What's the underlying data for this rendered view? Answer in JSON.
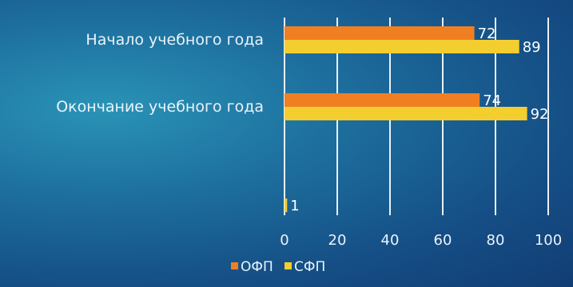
{
  "chart_data": {
    "type": "bar",
    "orientation": "horizontal",
    "categories": [
      "Начало учебного года",
      "Окончание учебного года",
      ""
    ],
    "series": [
      {
        "name": "ОФП",
        "values": [
          72,
          74,
          null
        ],
        "color": "#f07f22"
      },
      {
        "name": "СФП",
        "values": [
          89,
          92,
          1
        ],
        "color": "#f4ce2e"
      }
    ],
    "data_labels": [
      [
        "72",
        "74",
        ""
      ],
      [
        "89",
        "92",
        "1"
      ]
    ],
    "xticks": [
      "0",
      "20",
      "40",
      "60",
      "80",
      "100"
    ],
    "xlim": [
      0,
      100
    ],
    "grid": true,
    "legend": "bottom-center"
  }
}
